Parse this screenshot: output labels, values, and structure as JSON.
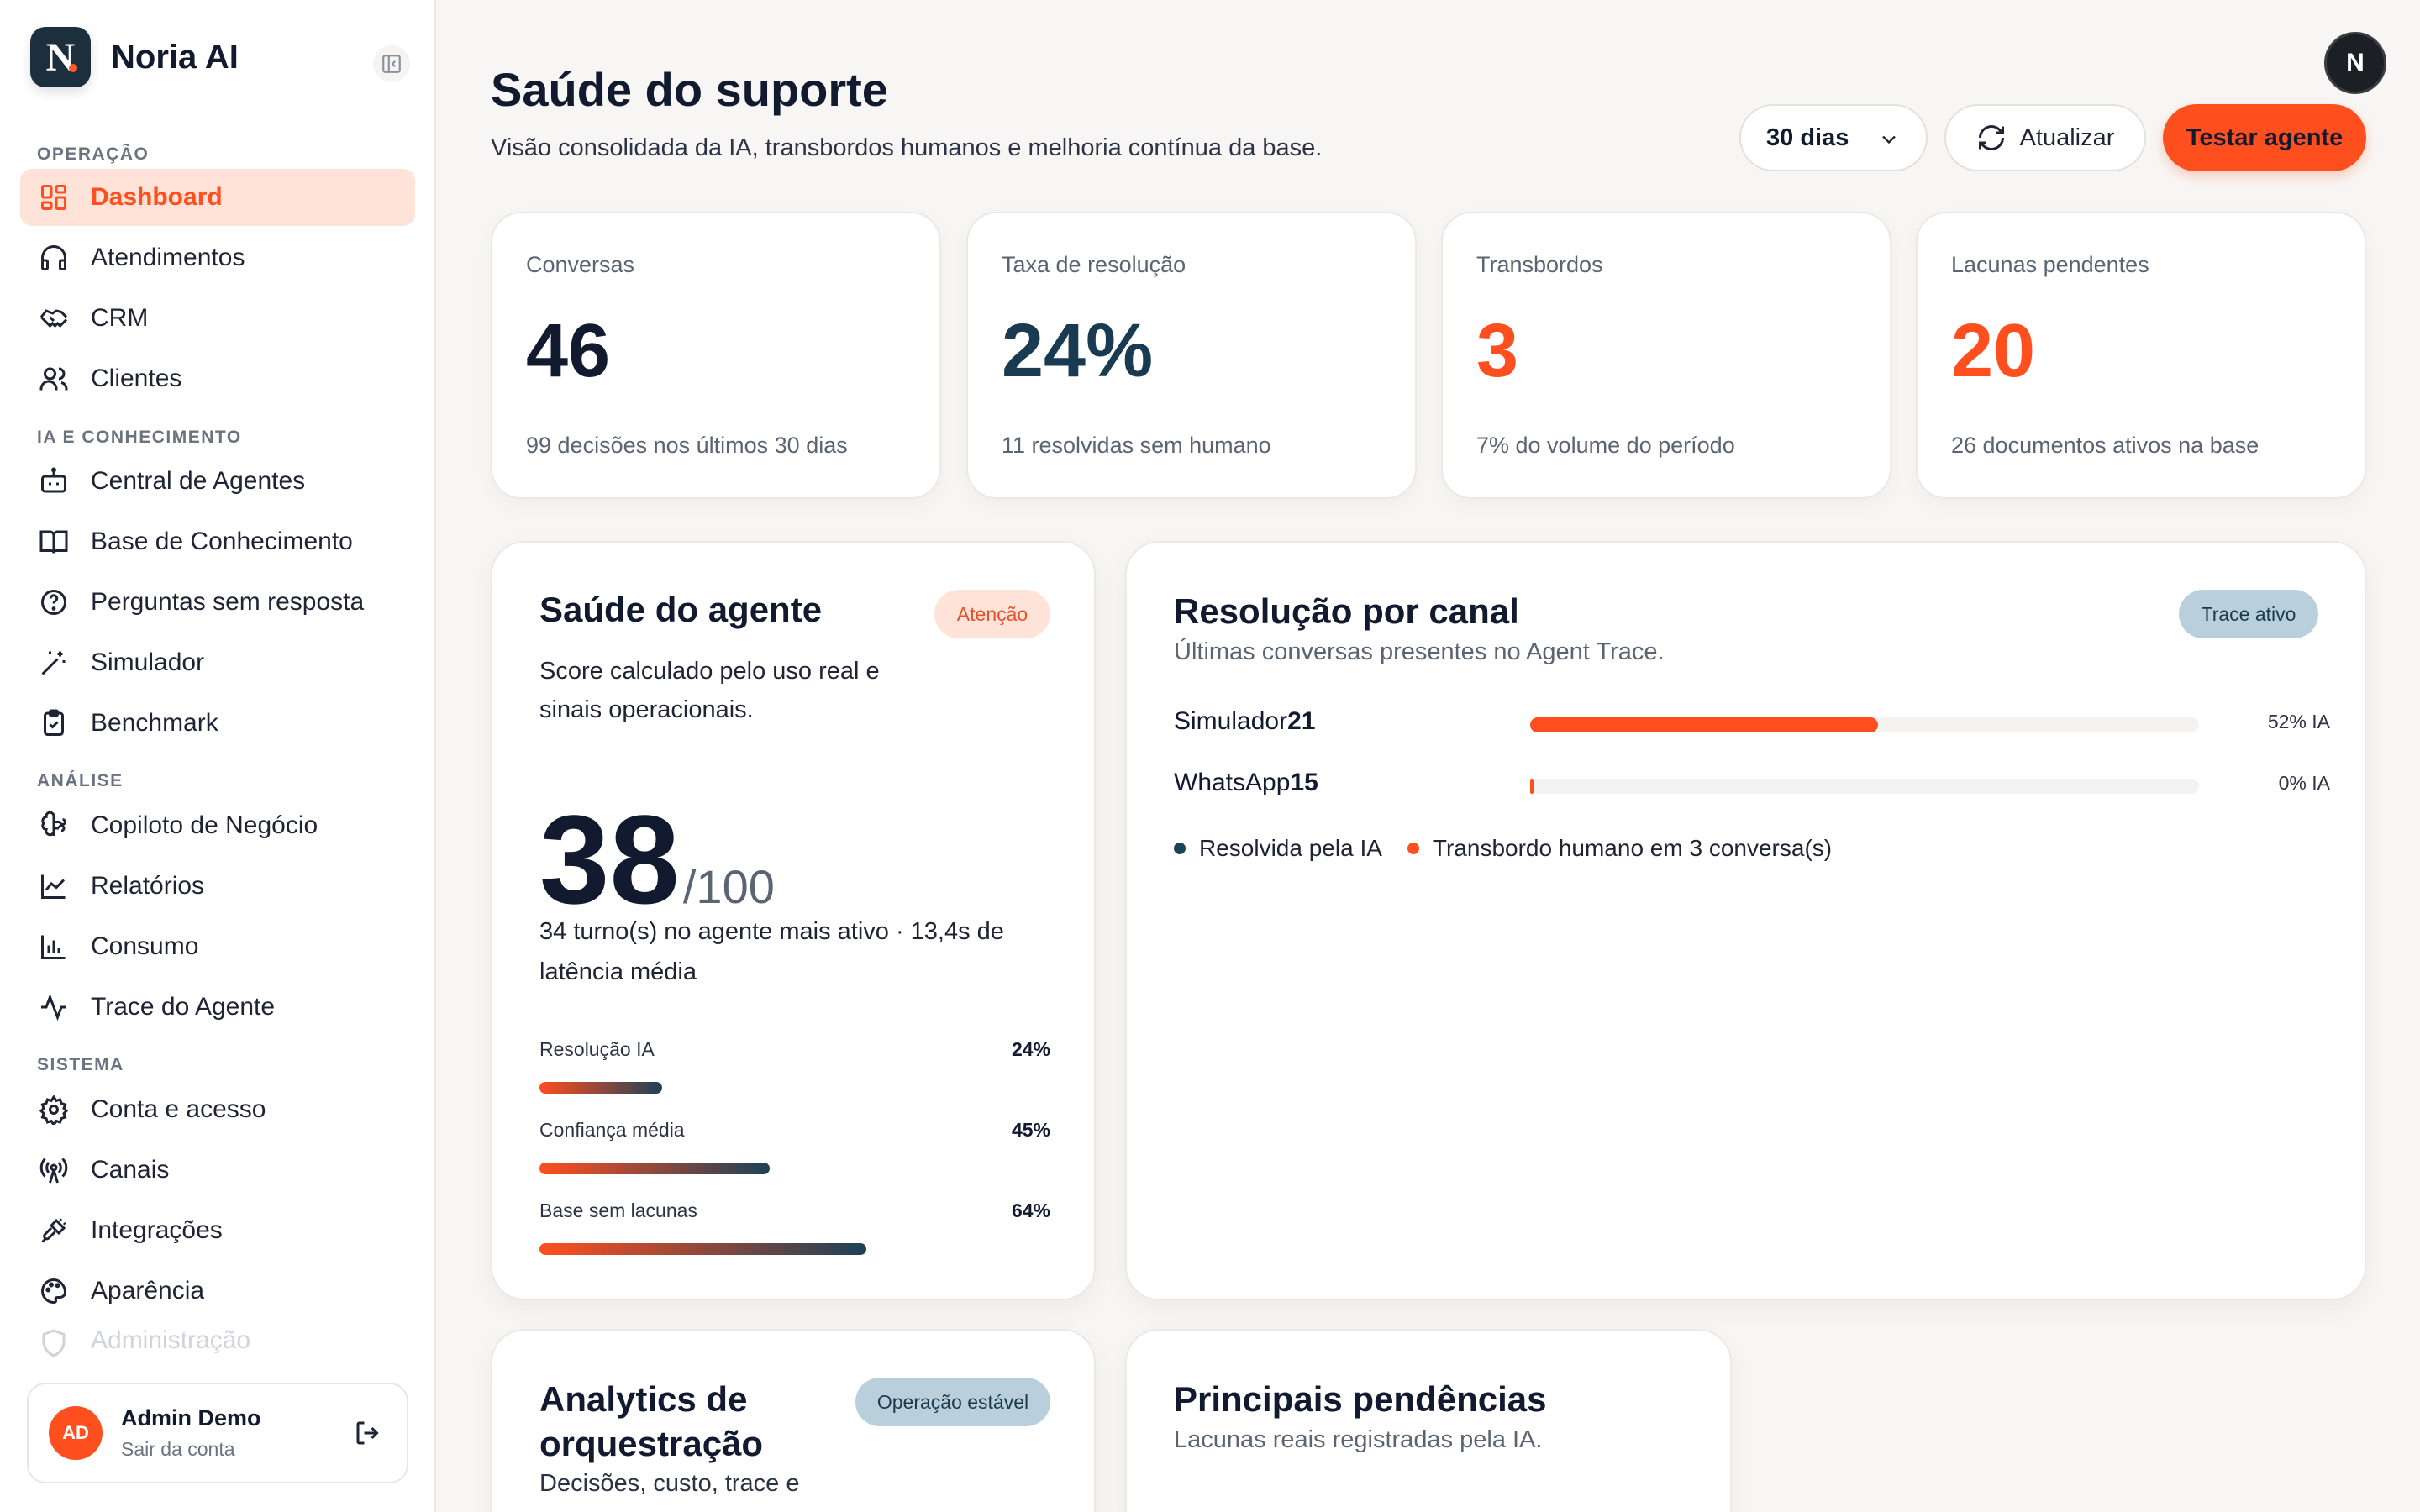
{
  "brand": {
    "name": "Noria AI",
    "logo_letter": "N"
  },
  "nav": {
    "sections": {
      "operacao": "OPERAÇÃO",
      "ia": "IA E CONHECIMENTO",
      "analise": "ANÁLISE",
      "sistema": "SISTEMA"
    },
    "items": [
      {
        "label": "Dashboard",
        "icon": "dashboard-icon"
      },
      {
        "label": "Atendimentos",
        "icon": "headset-icon"
      },
      {
        "label": "CRM",
        "icon": "handshake-icon"
      },
      {
        "label": "Clientes",
        "icon": "users-icon"
      },
      {
        "label": "Central de Agentes",
        "icon": "bot-icon"
      },
      {
        "label": "Base de Conhecimento",
        "icon": "book-icon"
      },
      {
        "label": "Perguntas sem resposta",
        "icon": "help-circle-icon"
      },
      {
        "label": "Simulador",
        "icon": "wand-icon"
      },
      {
        "label": "Benchmark",
        "icon": "clipboard-check-icon"
      },
      {
        "label": "Copiloto de Negócio",
        "icon": "brain-icon"
      },
      {
        "label": "Relatórios",
        "icon": "line-chart-icon"
      },
      {
        "label": "Consumo",
        "icon": "bar-chart-icon"
      },
      {
        "label": "Trace do Agente",
        "icon": "activity-icon"
      },
      {
        "label": "Conta e acesso",
        "icon": "gear-icon"
      },
      {
        "label": "Canais",
        "icon": "radio-tower-icon"
      },
      {
        "label": "Integrações",
        "icon": "plug-icon"
      },
      {
        "label": "Aparência",
        "icon": "palette-icon"
      },
      {
        "label": "Administração",
        "icon": "shield-icon"
      }
    ]
  },
  "account": {
    "initials": "AD",
    "name": "Admin Demo",
    "action": "Sair da conta"
  },
  "header": {
    "title": "Saúde do suporte",
    "subtitle": "Visão consolidada da IA, transbordos humanos e melhoria contínua da base.",
    "period": "30 dias",
    "refresh_label": "Atualizar",
    "test_label": "Testar agente",
    "user_initial": "N"
  },
  "stats": [
    {
      "label": "Conversas",
      "value": "46",
      "foot": "99 decisões nos últimos 30 dias",
      "color": "#111a2e"
    },
    {
      "label": "Taxa de resolução",
      "value": "24%",
      "foot": "11 resolvidas sem humano",
      "color": "#183b52"
    },
    {
      "label": "Transbordos",
      "value": "3",
      "foot": "7% do volume do período",
      "color": "#ff4f1f"
    },
    {
      "label": "Lacunas pendentes",
      "value": "20",
      "foot": "26 documentos ativos na base",
      "color": "#ff4f1f"
    }
  ],
  "health": {
    "title": "Saúde do agente",
    "badge": "Atenção",
    "description": "Score calculado pelo uso real e sinais operacionais.",
    "score": "38",
    "score_max": "/100",
    "meta": "34 turno(s) no agente mais ativo · 13,4s de latência média",
    "metrics": [
      {
        "label": "Resolução IA",
        "value": "24%",
        "fraction": 0.24
      },
      {
        "label": "Confiança média",
        "value": "45%",
        "fraction": 0.45
      },
      {
        "label": "Base sem lacunas",
        "value": "64%",
        "fraction": 0.64
      }
    ]
  },
  "channels": {
    "title": "Resolução por canal",
    "subtitle": "Últimas conversas presentes no Agent Trace.",
    "badge": "Trace ativo",
    "rows": [
      {
        "name": "Simulador",
        "count": "21",
        "pct_label": "52% IA",
        "fraction": 0.52
      },
      {
        "name": "WhatsApp",
        "count": "15",
        "pct_label": "0% IA",
        "fraction": 0.0
      }
    ],
    "legend": [
      {
        "label": "Resolvida pela IA",
        "color": "#1c4258"
      },
      {
        "label": "Transbordo humano em 3 conversa(s)",
        "color": "#ff4f1f"
      }
    ]
  },
  "orchestration": {
    "title": "Analytics de orquestração",
    "badge": "Operação estável",
    "subtitle": "Decisões, custo, trace e"
  },
  "pending": {
    "title": "Principais pendências",
    "subtitle": "Lacunas reais registradas pela IA."
  }
}
